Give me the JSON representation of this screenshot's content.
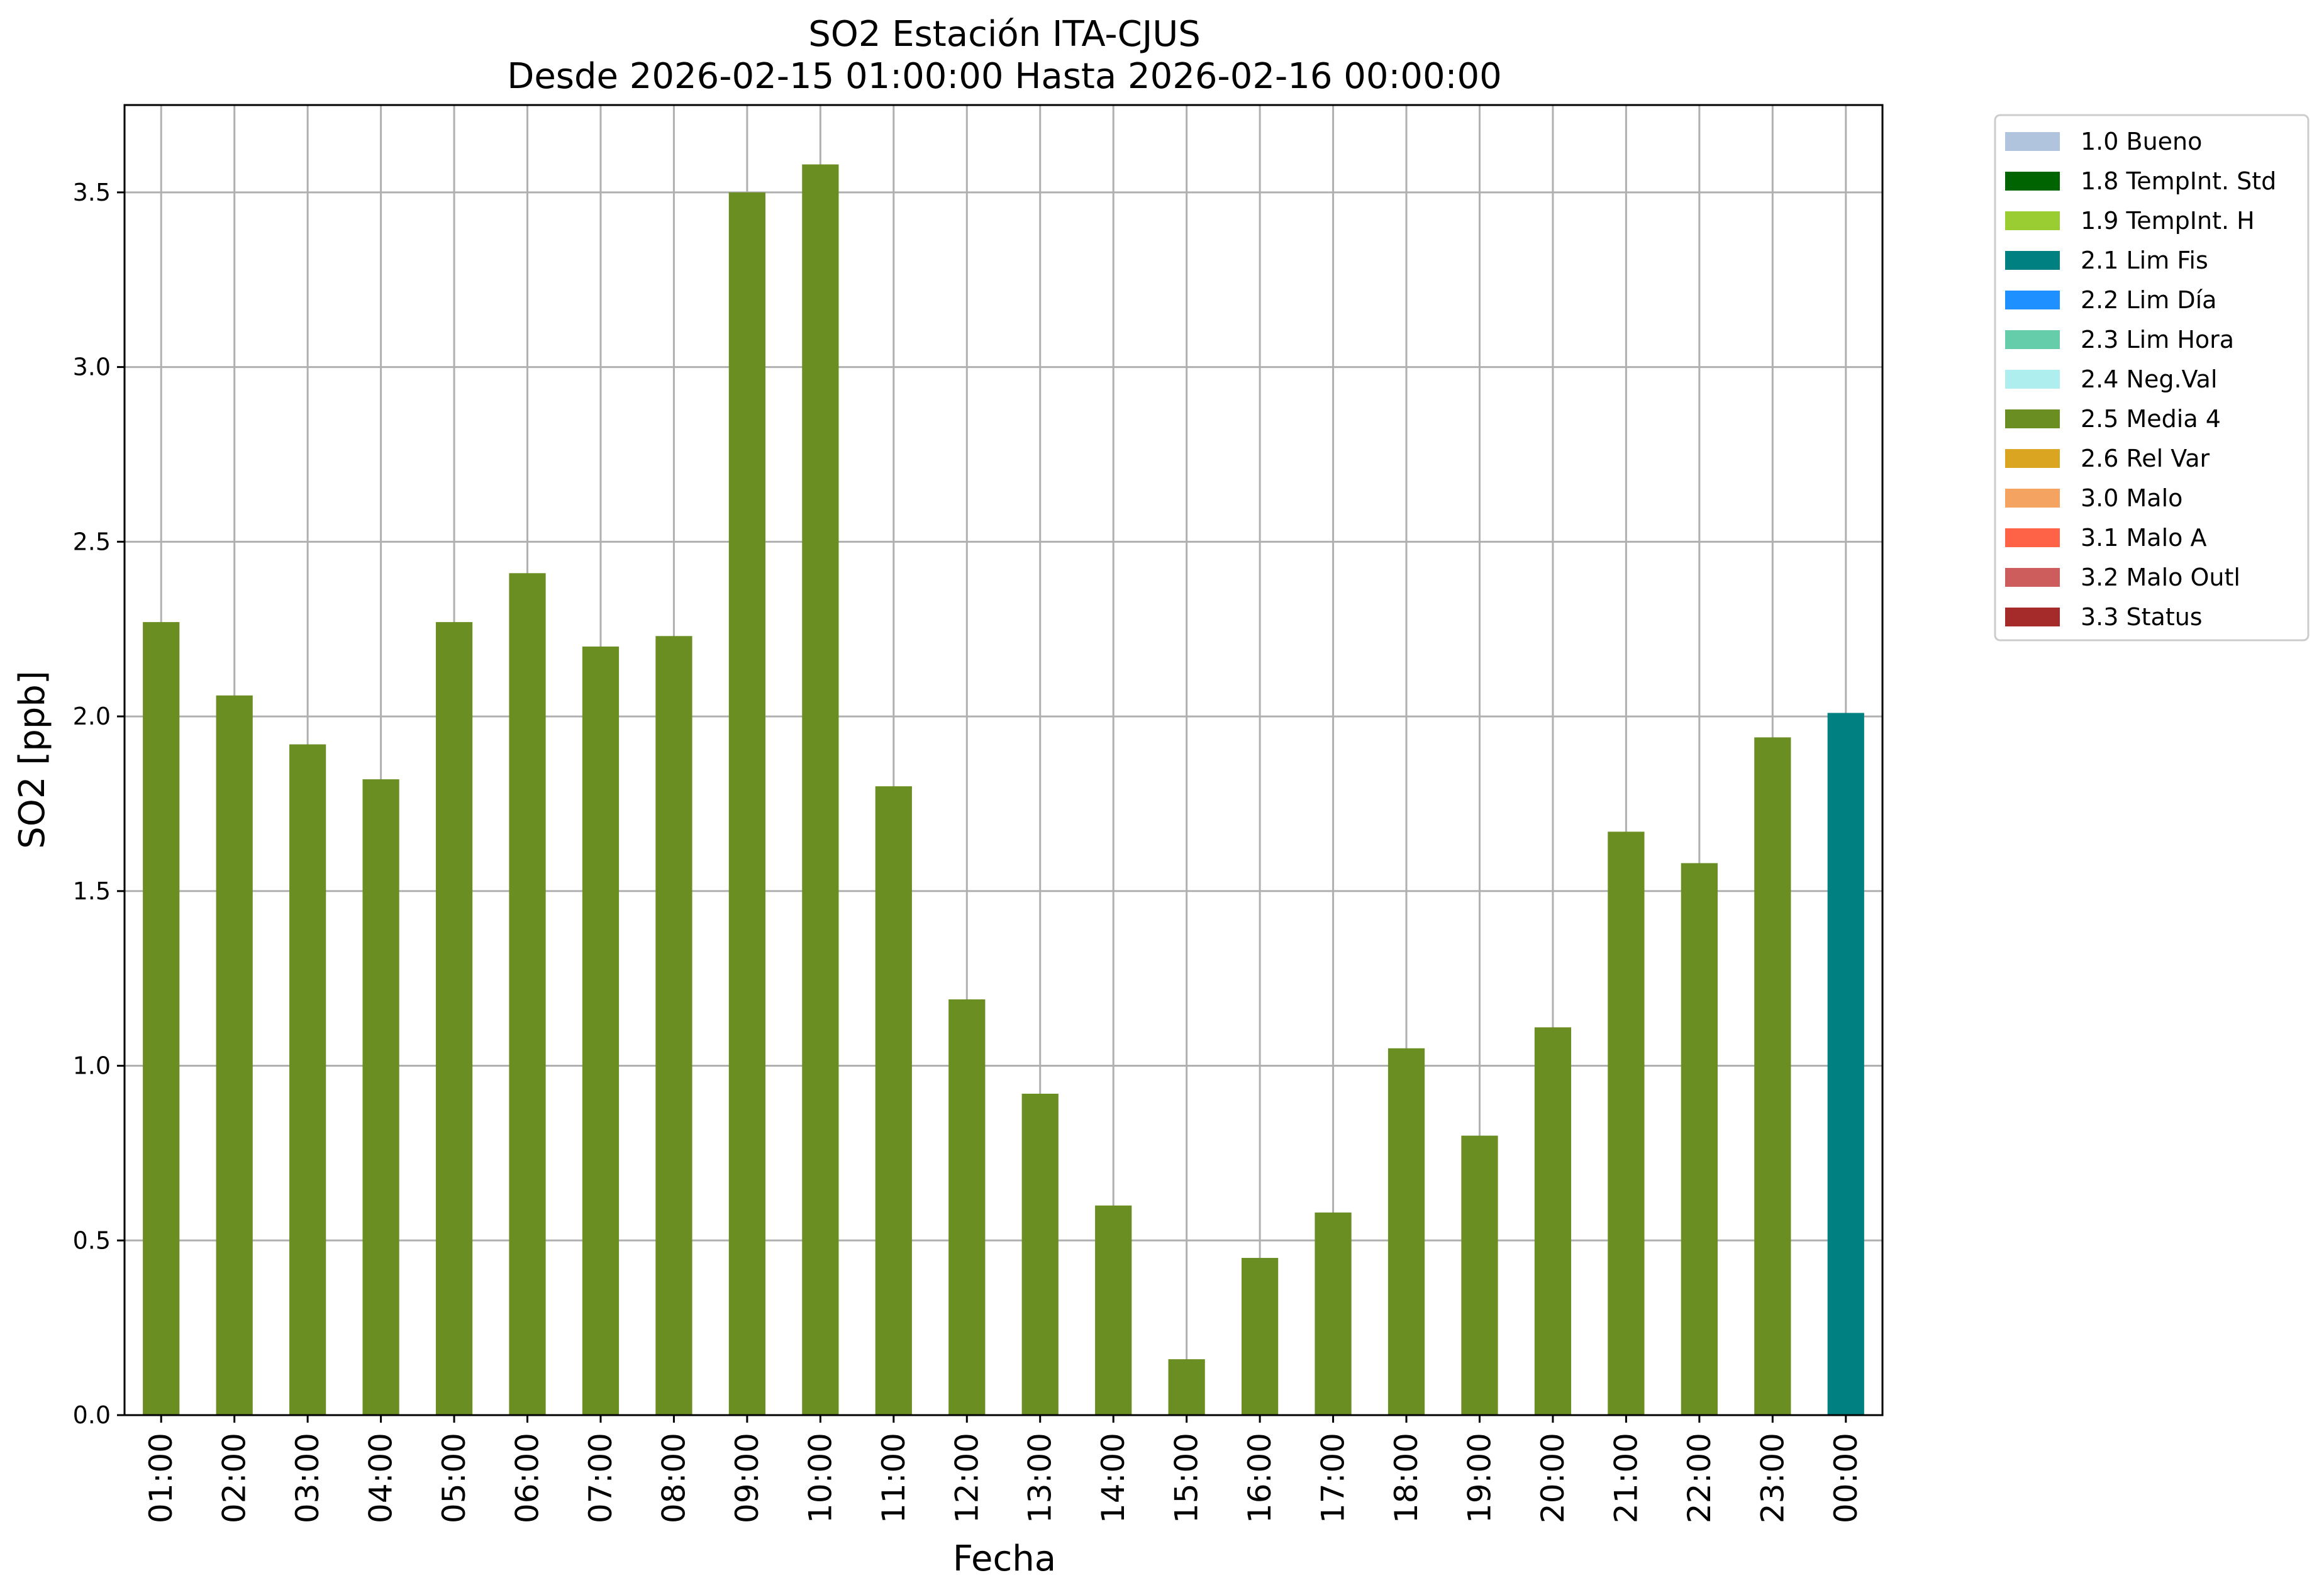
{
  "chart_data": {
    "type": "bar",
    "title": "SO2 Estación ITA-CJUS",
    "subtitle": "Desde 2026-02-15 01:00:00 Hasta 2026-02-16 00:00:00",
    "xlabel": "Fecha",
    "ylabel": "SO2 [ppb]",
    "ylim": [
      0,
      3.75
    ],
    "yticks": [
      "0.0",
      "0.5",
      "1.0",
      "1.5",
      "2.0",
      "2.5",
      "3.0",
      "3.5"
    ],
    "grid": true,
    "legend_position": "outside-top-right",
    "categories": [
      "01:00",
      "02:00",
      "03:00",
      "04:00",
      "05:00",
      "06:00",
      "07:00",
      "08:00",
      "09:00",
      "10:00",
      "11:00",
      "12:00",
      "13:00",
      "14:00",
      "15:00",
      "16:00",
      "17:00",
      "18:00",
      "19:00",
      "20:00",
      "21:00",
      "22:00",
      "23:00",
      "00:00"
    ],
    "values": [
      2.27,
      2.06,
      1.92,
      1.82,
      2.27,
      2.41,
      2.2,
      2.23,
      3.5,
      3.58,
      1.8,
      1.19,
      0.92,
      0.6,
      0.16,
      0.45,
      0.58,
      1.05,
      0.8,
      1.11,
      1.67,
      1.58,
      1.94,
      2.01
    ],
    "bar_flags": [
      "2.5 Media 4",
      "2.5 Media 4",
      "2.5 Media 4",
      "2.5 Media 4",
      "2.5 Media 4",
      "2.5 Media 4",
      "2.5 Media 4",
      "2.5 Media 4",
      "2.5 Media 4",
      "2.5 Media 4",
      "2.5 Media 4",
      "2.5 Media 4",
      "2.5 Media 4",
      "2.5 Media 4",
      "2.5 Media 4",
      "2.5 Media 4",
      "2.5 Media 4",
      "2.5 Media 4",
      "2.5 Media 4",
      "2.5 Media 4",
      "2.5 Media 4",
      "2.5 Media 4",
      "2.5 Media 4",
      "2.1 Lim Fis"
    ],
    "legend": [
      {
        "label": "1.0 Bueno",
        "color": "#b0c4de"
      },
      {
        "label": "1.8 TempInt. Std",
        "color": "#006400"
      },
      {
        "label": "1.9 TempInt. H",
        "color": "#9acd32"
      },
      {
        "label": "2.1 Lim Fis",
        "color": "#008080"
      },
      {
        "label": "2.2 Lim Día",
        "color": "#1e90ff"
      },
      {
        "label": "2.3 Lim Hora",
        "color": "#66cdaa"
      },
      {
        "label": "2.4 Neg.Val",
        "color": "#afeeee"
      },
      {
        "label": "2.5 Media 4",
        "color": "#6b8e23"
      },
      {
        "label": "2.6 Rel Var",
        "color": "#daa520"
      },
      {
        "label": "3.0 Malo",
        "color": "#f4a460"
      },
      {
        "label": "3.1 Malo A",
        "color": "#ff6347"
      },
      {
        "label": "3.2 Malo Outl",
        "color": "#cd5c5c"
      },
      {
        "label": "3.3 Status",
        "color": "#a52a2a"
      }
    ]
  }
}
